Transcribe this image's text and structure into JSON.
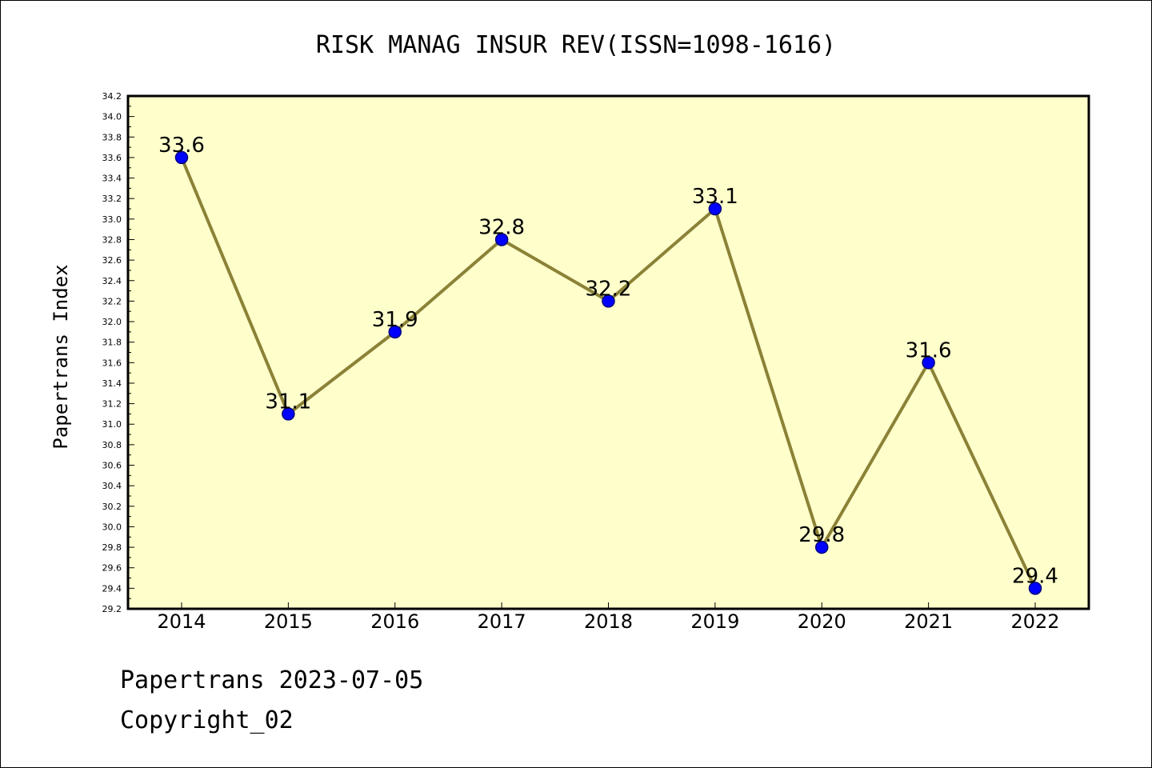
{
  "chart_data": {
    "type": "line",
    "title": "RISK MANAG INSUR REV(ISSN=1098-1616)",
    "xlabel": "",
    "ylabel": "Papertrans Index",
    "categories": [
      "2014",
      "2015",
      "2016",
      "2017",
      "2018",
      "2019",
      "2020",
      "2021",
      "2022"
    ],
    "series": [
      {
        "values": [
          33.6,
          31.1,
          31.9,
          32.8,
          32.2,
          33.1,
          29.8,
          31.6,
          29.4
        ],
        "point_labels": [
          "33.6",
          "31.1",
          "31.9",
          "32.8",
          "32.2",
          "33.1",
          "29.8",
          "31.6",
          "29.4"
        ]
      }
    ],
    "ylim": [
      29.2,
      34.2
    ],
    "yticks": [
      "29.2",
      "29.4",
      "29.6",
      "29.8",
      "30.0",
      "30.2",
      "30.4",
      "30.6",
      "30.8",
      "31.0",
      "31.2",
      "31.4",
      "31.6",
      "31.8",
      "32.0",
      "32.2",
      "32.4",
      "32.6",
      "32.8",
      "33.0",
      "33.2",
      "33.4",
      "33.6",
      "33.8",
      "34.0",
      "34.2"
    ],
    "grid": false,
    "colors": {
      "plot_background": "#ffffcc",
      "line": "#8b8237",
      "marker_fill": "#0000ff",
      "marker_edge": "#000080"
    }
  },
  "footer": {
    "line1": "Papertrans 2023-07-05",
    "line2": "Copyright_02"
  }
}
